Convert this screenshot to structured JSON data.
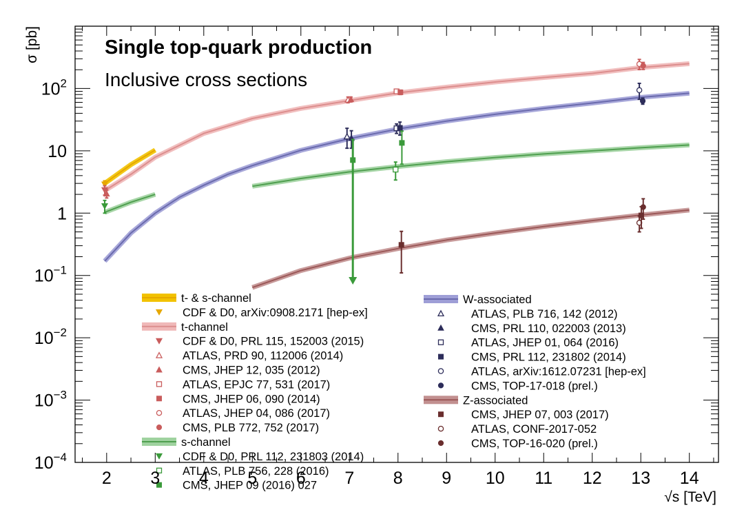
{
  "chart_data": {
    "type": "line",
    "title": "Single top-quark production",
    "subtitle": "Inclusive cross sections",
    "xlabel": "√s [TeV]",
    "ylabel": "σ [pb]",
    "xlim": [
      1.35,
      14.6
    ],
    "ylim": [
      0.0001,
      1000
    ],
    "yscale": "log",
    "x_ticks": [
      "2",
      "3",
      "4",
      "5",
      "6",
      "7",
      "8",
      "9",
      "10",
      "11",
      "12",
      "13",
      "14"
    ],
    "x_tick_values": [
      2,
      3,
      4,
      5,
      6,
      7,
      8,
      9,
      10,
      11,
      12,
      13,
      14
    ],
    "y_ticks": [
      {
        "value": 0.0001,
        "base": "10",
        "exp": "−4"
      },
      {
        "value": 0.001,
        "base": "10",
        "exp": "−3"
      },
      {
        "value": 0.01,
        "base": "10",
        "exp": "−2"
      },
      {
        "value": 0.1,
        "base": "10",
        "exp": "−1"
      },
      {
        "value": 1,
        "base": "1",
        "exp": ""
      },
      {
        "value": 10,
        "base": "10",
        "exp": ""
      },
      {
        "value": 100,
        "base": "10",
        "exp": "2"
      }
    ],
    "theory_curves": [
      {
        "name": "t- & s-channel",
        "color": "#e6a800",
        "band": "#f2c200",
        "x": [
          1.96,
          2.5,
          3.0
        ],
        "y": [
          3.0,
          6.0,
          10.3
        ]
      },
      {
        "name": "t-channel",
        "color": "#dc8d8d",
        "band": "#f0b8b8",
        "x": [
          1.96,
          2.5,
          3,
          4,
          5,
          6,
          7,
          8,
          9,
          10,
          11,
          12,
          13,
          14
        ],
        "y": [
          2.3,
          4.2,
          7.9,
          19,
          33,
          48,
          64,
          85,
          105,
          127,
          150,
          175,
          217,
          250
        ]
      },
      {
        "name": "s-channel",
        "color": "#4f9f4f",
        "band": "#9fd29f",
        "x": [
          1.96,
          2.5,
          3.0
        ],
        "y": [
          1.03,
          1.5,
          2.0
        ]
      },
      {
        "name": "s-channel-lhc",
        "color": "#4f9f4f",
        "band": "#9fd29f",
        "x": [
          5,
          6,
          7,
          8,
          9,
          10,
          11,
          12,
          13,
          14
        ],
        "y": [
          2.7,
          3.6,
          4.6,
          5.6,
          6.7,
          7.8,
          8.9,
          10.0,
          11.2,
          12.4
        ]
      },
      {
        "name": "W-associated",
        "color": "#6a6aad",
        "band": "#9e9ed6",
        "x": [
          1.96,
          2.5,
          3,
          3.5,
          4,
          4.5,
          5,
          6,
          7,
          8,
          9,
          10,
          11,
          12,
          13,
          14
        ],
        "y": [
          0.17,
          0.48,
          1.0,
          1.8,
          2.8,
          4.2,
          5.8,
          10.2,
          15.7,
          22.4,
          30,
          38.5,
          48,
          58.5,
          72,
          84
        ]
      },
      {
        "name": "Z-associated",
        "color": "#9b5858",
        "band": "#c29090",
        "x": [
          5,
          6,
          7,
          8,
          9,
          10,
          11,
          12,
          13,
          14
        ],
        "y": [
          0.064,
          0.12,
          0.19,
          0.27,
          0.37,
          0.48,
          0.61,
          0.76,
          0.93,
          1.12
        ]
      }
    ],
    "measurements": [
      {
        "x": 1.96,
        "y": 2.9,
        "err": 0.4,
        "marker": "tri-down",
        "color": "#e6a800"
      },
      {
        "x": 1.96,
        "y": 2.35,
        "err": 0.4,
        "marker": "tri-down",
        "color": "#c95c5c"
      },
      {
        "x": 2.0,
        "y": 2.05,
        "err": 0.3,
        "marker": "tri-up",
        "color": "#c95c5c"
      },
      {
        "x": 1.96,
        "y": 1.3,
        "err": 0.3,
        "marker": "tri-down",
        "color": "#3a9a3a"
      },
      {
        "x": 6.97,
        "y": 66,
        "err": 7,
        "marker": "tri-up-open",
        "color": "#c95c5c"
      },
      {
        "x": 7.03,
        "y": 67,
        "err": 6,
        "marker": "tri-up",
        "color": "#c95c5c"
      },
      {
        "x": 7.97,
        "y": 90,
        "err": 5,
        "marker": "sq-open",
        "color": "#c95c5c"
      },
      {
        "x": 8.05,
        "y": 87,
        "err": 7,
        "marker": "sq",
        "color": "#c95c5c"
      },
      {
        "x": 12.97,
        "y": 247,
        "err": 46,
        "marker": "circ-open",
        "color": "#c95c5c"
      },
      {
        "x": 13.05,
        "y": 232,
        "err": 30,
        "marker": "circ",
        "color": "#c95c5c"
      },
      {
        "x": 6.95,
        "y": 17,
        "err": 6,
        "marker": "tri-up-open",
        "color": "#2d2d5a"
      },
      {
        "x": 7.04,
        "y": 16,
        "err": 5,
        "marker": "tri-up",
        "color": "#2d2d5a"
      },
      {
        "x": 7.97,
        "y": 23,
        "err": 4,
        "marker": "sq-open",
        "color": "#2d2d5a"
      },
      {
        "x": 8.04,
        "y": 23.4,
        "err": 5.5,
        "marker": "sq",
        "color": "#2d2d5a"
      },
      {
        "x": 12.97,
        "y": 94,
        "err": 27,
        "marker": "circ-open",
        "color": "#2d2d5a"
      },
      {
        "x": 13.04,
        "y": 63,
        "err": 7,
        "marker": "circ",
        "color": "#2d2d5a"
      },
      {
        "x": 7.95,
        "y": 5.0,
        "err": 1.6,
        "marker": "sq-open",
        "color": "#3a9a3a"
      },
      {
        "x": 8.08,
        "y": 13.4,
        "err": 7.3,
        "marker": "sq",
        "color": "#3a9a3a"
      },
      {
        "x": 7.07,
        "y": 7.1,
        "err": 8.1,
        "marker": "sq",
        "color": "#3a9a3a",
        "lower_limit_arrow": 0.075
      },
      {
        "x": 8.07,
        "y": 0.31,
        "err": 0.2,
        "marker": "sq",
        "color": "#6a2e2e"
      },
      {
        "x": 12.97,
        "y": 0.7,
        "err": 0.2,
        "marker": "circ-open",
        "color": "#6a2e2e"
      },
      {
        "x": 13.05,
        "y": 1.25,
        "err": 0.45,
        "marker": "circ",
        "color": "#6a2e2e"
      },
      {
        "x": 13.01,
        "y": 0.92,
        "err": 0.35,
        "marker": "sq",
        "color": "#6a2e2e"
      }
    ],
    "legend": {
      "left": [
        {
          "kind": "band",
          "label": "t- & s-channel",
          "color": "#e6a800",
          "band": "#f2c200"
        },
        {
          "kind": "marker",
          "marker": "tri-down",
          "color": "#e6a800",
          "label": "CDF & D0, arXiv:0908.2171 [hep-ex]"
        },
        {
          "kind": "band",
          "label": "t-channel",
          "color": "#dc8d8d",
          "band": "#f0b8b8"
        },
        {
          "kind": "marker",
          "marker": "tri-down",
          "color": "#c95c5c",
          "label": "CDF & D0, PRL 115, 152003 (2015)"
        },
        {
          "kind": "marker",
          "marker": "tri-up-open",
          "color": "#c95c5c",
          "label": "ATLAS, PRD 90, 112006 (2014)"
        },
        {
          "kind": "marker",
          "marker": "tri-up",
          "color": "#c95c5c",
          "label": "CMS, JHEP 12, 035 (2012)"
        },
        {
          "kind": "marker",
          "marker": "sq-open",
          "color": "#c95c5c",
          "label": "ATLAS, EPJC 77, 531 (2017)"
        },
        {
          "kind": "marker",
          "marker": "sq",
          "color": "#c95c5c",
          "label": "CMS, JHEP 06, 090 (2014)"
        },
        {
          "kind": "marker",
          "marker": "circ-open",
          "color": "#c95c5c",
          "label": "ATLAS, JHEP 04, 086 (2017)"
        },
        {
          "kind": "marker",
          "marker": "circ",
          "color": "#c95c5c",
          "label": "CMS, PLB 772, 752 (2017)"
        },
        {
          "kind": "band",
          "label": "s-channel",
          "color": "#4f9f4f",
          "band": "#9fd29f"
        },
        {
          "kind": "marker",
          "marker": "tri-down",
          "color": "#3a9a3a",
          "label": "CDF & D0, PRL 112, 231803 (2014)"
        },
        {
          "kind": "marker",
          "marker": "sq-open",
          "color": "#3a9a3a",
          "label": "ATLAS, PLB 756, 228 (2016)"
        },
        {
          "kind": "marker",
          "marker": "sq",
          "color": "#3a9a3a",
          "label": "CMS, JHEP 09 (2016) 027"
        }
      ],
      "right": [
        {
          "kind": "band",
          "label": "W-associated",
          "color": "#6a6aad",
          "band": "#9e9ed6"
        },
        {
          "kind": "marker",
          "marker": "tri-up-open",
          "color": "#2d2d5a",
          "label": "ATLAS, PLB 716, 142 (2012)"
        },
        {
          "kind": "marker",
          "marker": "tri-up",
          "color": "#2d2d5a",
          "label": "CMS, PRL 110, 022003 (2013)"
        },
        {
          "kind": "marker",
          "marker": "sq-open",
          "color": "#2d2d5a",
          "label": "ATLAS, JHEP 01, 064 (2016)"
        },
        {
          "kind": "marker",
          "marker": "sq",
          "color": "#2d2d5a",
          "label": "CMS, PRL 112, 231802 (2014)"
        },
        {
          "kind": "marker",
          "marker": "circ-open",
          "color": "#2d2d5a",
          "label": "ATLAS, arXiv:1612.07231 [hep-ex]"
        },
        {
          "kind": "marker",
          "marker": "circ",
          "color": "#2d2d5a",
          "label": "CMS, TOP-17-018 (prel.)"
        },
        {
          "kind": "band",
          "label": "Z-associated",
          "color": "#9b5858",
          "band": "#c29090"
        },
        {
          "kind": "marker",
          "marker": "sq",
          "color": "#6a2e2e",
          "label": "CMS, JHEP 07, 003 (2017)"
        },
        {
          "kind": "marker",
          "marker": "circ-open",
          "color": "#6a2e2e",
          "label": "ATLAS, CONF-2017-052"
        },
        {
          "kind": "marker",
          "marker": "circ",
          "color": "#6a2e2e",
          "label": "CMS, TOP-16-020 (prel.)"
        }
      ]
    }
  }
}
